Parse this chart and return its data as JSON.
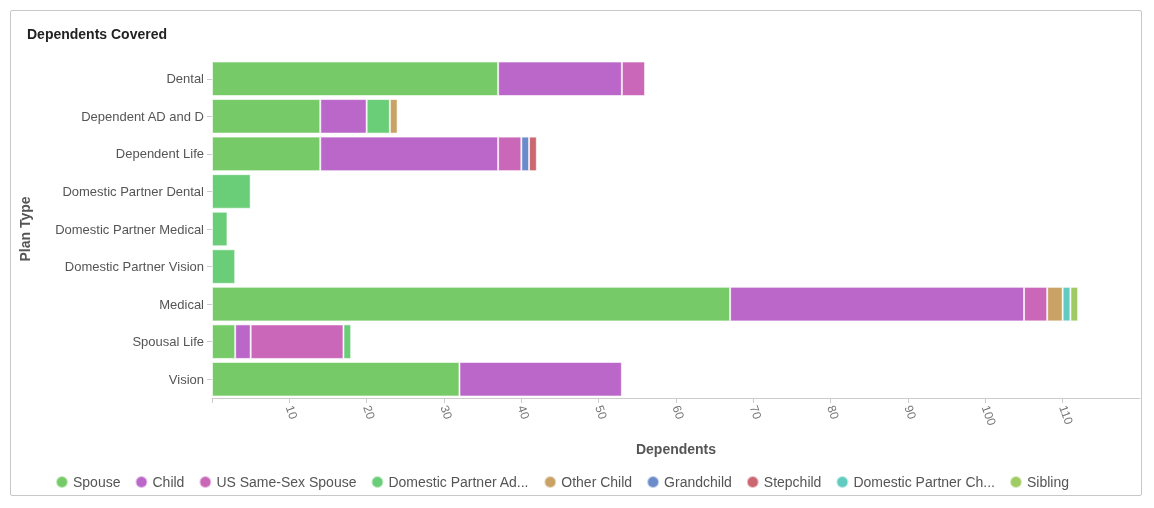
{
  "chart_data": {
    "type": "bar",
    "title": "Dependents Covered",
    "xlabel": "Dependents",
    "ylabel": "Plan Type",
    "orientation": "horizontal",
    "stacked": true,
    "legend": "bottom",
    "grid": false,
    "categories": [
      "Dental",
      "Dependent AD and D",
      "Dependent Life",
      "Domestic Partner Dental",
      "Domestic Partner Medical",
      "Domestic Partner Vision",
      "Medical",
      "Spousal Life",
      "Vision"
    ],
    "xlim": [
      0,
      120
    ],
    "xticks": [
      {
        "value": 0,
        "label": null
      },
      10,
      20,
      30,
      40,
      50,
      60,
      70,
      80,
      90,
      100,
      110
    ],
    "series": [
      {
        "name": "Spouse",
        "color": "#76cb68",
        "values": [
          37,
          14,
          14,
          null,
          null,
          null,
          67,
          3,
          32
        ]
      },
      {
        "name": "Child",
        "color": "#bb67c9",
        "values": [
          16,
          6,
          23,
          null,
          null,
          null,
          38,
          2,
          21
        ]
      },
      {
        "name": "US Same-Sex Spouse",
        "color": "#cb67b8",
        "values": [
          3,
          null,
          3,
          null,
          null,
          null,
          3,
          12,
          null
        ]
      },
      {
        "name": "Domestic Partner Ad...",
        "color": "#6acd78",
        "values": [
          null,
          3,
          null,
          5,
          2,
          3,
          null,
          1,
          null
        ]
      },
      {
        "name": "Other Child",
        "color": "#c9a366",
        "values": [
          null,
          1,
          null,
          null,
          null,
          null,
          2,
          null,
          null
        ]
      },
      {
        "name": "Grandchild",
        "color": "#6a8ccb",
        "values": [
          null,
          null,
          1,
          null,
          null,
          null,
          null,
          null,
          null
        ]
      },
      {
        "name": "Stepchild",
        "color": "#cb6770",
        "values": [
          null,
          null,
          1,
          null,
          null,
          null,
          null,
          null,
          null
        ]
      },
      {
        "name": "Domestic Partner Ch...",
        "color": "#62cbc0",
        "values": [
          null,
          null,
          null,
          null,
          null,
          null,
          1,
          null,
          null
        ]
      },
      {
        "name": "Sibling",
        "color": "#9fcb62",
        "values": [
          null,
          null,
          null,
          null,
          null,
          null,
          1,
          null,
          null
        ]
      }
    ]
  }
}
